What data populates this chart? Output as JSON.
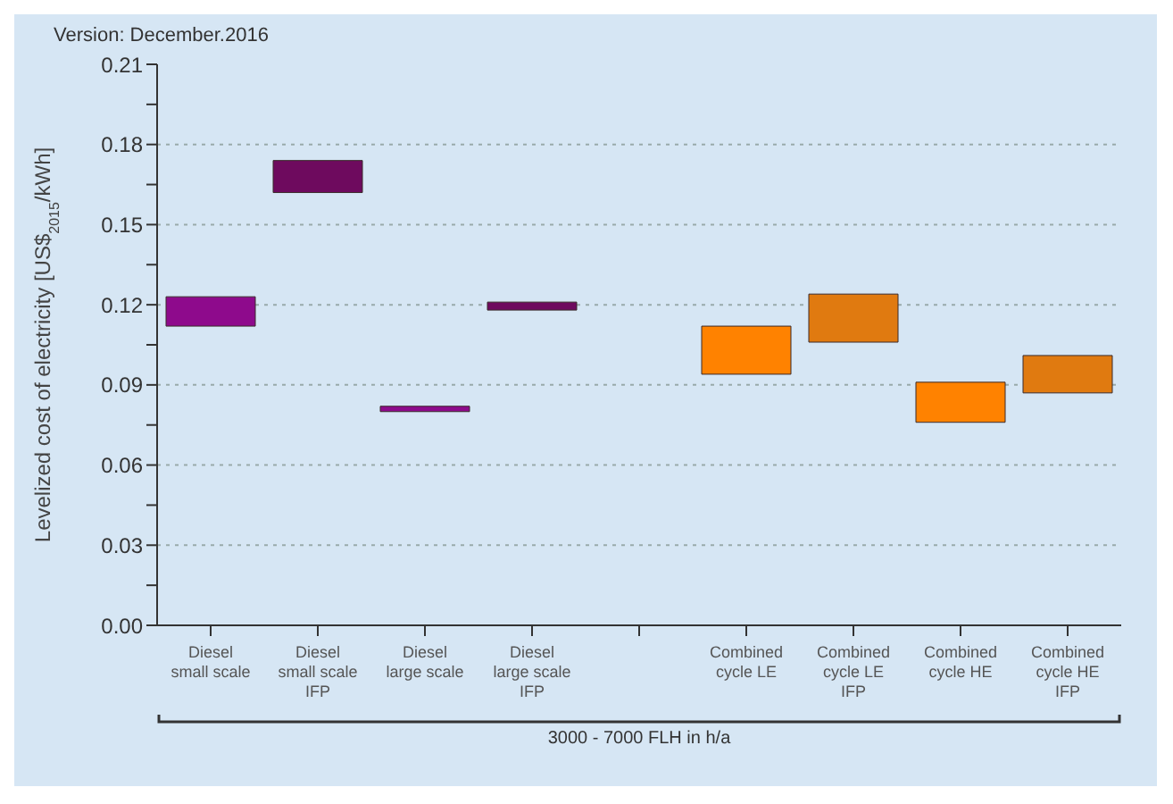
{
  "chart_data": {
    "type": "bar",
    "ylabel": "Levelized cost of electricity [US$$_{2015}$/kWh]",
    "categories": [
      "Diesel small scale",
      "Diesel small scale IFP",
      "Diesel large scale",
      "Diesel large scale IFP",
      null,
      "Combined cycle LE",
      "Combined cycle LE IFP",
      "Combined cycle HE",
      "Combined cycle HE IFP"
    ],
    "base": [
      0.112,
      0.162,
      0.08,
      0.118,
      null,
      0.094,
      0.106,
      0.076,
      0.087
    ],
    "values": [
      0.011,
      0.012,
      0.002,
      0.003,
      null,
      0.018,
      0.018,
      0.015,
      0.014
    ],
    "colors": [
      "#8e0a8c",
      "#6e0a5e",
      "#8e0a8c",
      "#6e0a5e",
      null,
      "#ff8200",
      "#e07a10",
      "#ff8200",
      "#e07a10"
    ],
    "ylim": [
      0,
      0.21
    ],
    "yticks": [
      {
        "value": 0,
        "label": "0.00"
      },
      {
        "value": 0.015,
        "label": null
      },
      {
        "value": 0.03,
        "label": "0.03"
      },
      {
        "value": 0.045,
        "label": null
      },
      {
        "value": 0.06,
        "label": "0.06"
      },
      {
        "value": 0.075,
        "label": null
      },
      {
        "value": 0.09,
        "label": "0.09"
      },
      {
        "value": 0.105,
        "label": null
      },
      {
        "value": 0.12,
        "label": "0.12"
      },
      {
        "value": 0.135,
        "label": null
      },
      {
        "value": 0.15,
        "label": "0.15"
      },
      {
        "value": 0.165,
        "label": null
      },
      {
        "value": 0.18,
        "label": "0.18"
      },
      {
        "value": 0.195,
        "label": null
      },
      {
        "value": 0.21,
        "label": "0.21"
      }
    ],
    "grid": "y",
    "annotations": [
      "Version: December.2016",
      "3000 - 7000 FLH in h/a"
    ]
  }
}
